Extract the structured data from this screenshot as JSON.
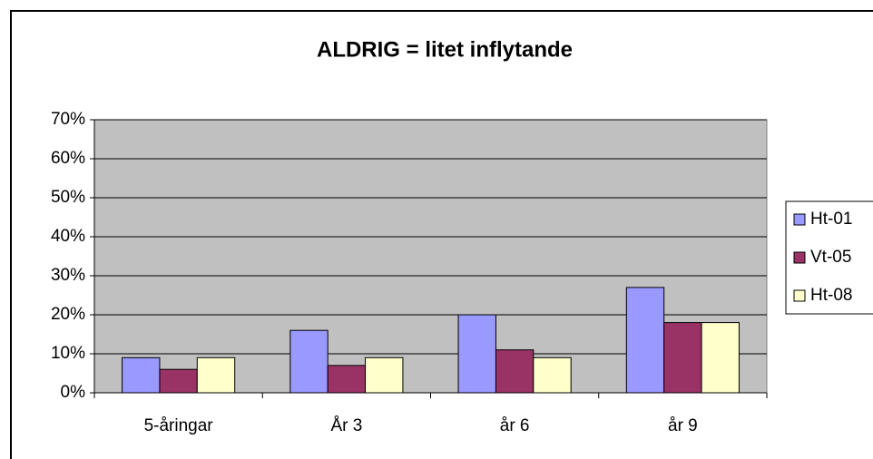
{
  "chart_data": {
    "type": "bar",
    "title": "ALDRIG = litet inflytande",
    "categories": [
      "5-åringar",
      "År 3",
      "år 6",
      "år 9"
    ],
    "series": [
      {
        "name": "Ht-01",
        "color": "#9999ff",
        "values": [
          9,
          16,
          20,
          27
        ]
      },
      {
        "name": "Vt-05",
        "color": "#993366",
        "values": [
          6,
          7,
          11,
          18
        ]
      },
      {
        "name": "Ht-08",
        "color": "#ffffcc",
        "values": [
          9,
          9,
          9,
          18
        ]
      }
    ],
    "ylim": [
      0,
      70
    ],
    "yticks": [
      {
        "value": 0,
        "label": "0%"
      },
      {
        "value": 10,
        "label": "10%"
      },
      {
        "value": 20,
        "label": "20%"
      },
      {
        "value": 30,
        "label": "30%"
      },
      {
        "value": 40,
        "label": "40%"
      },
      {
        "value": 50,
        "label": "50%"
      },
      {
        "value": 60,
        "label": "60%"
      },
      {
        "value": 70,
        "label": "70%"
      }
    ],
    "grid": true,
    "legend": "right"
  }
}
